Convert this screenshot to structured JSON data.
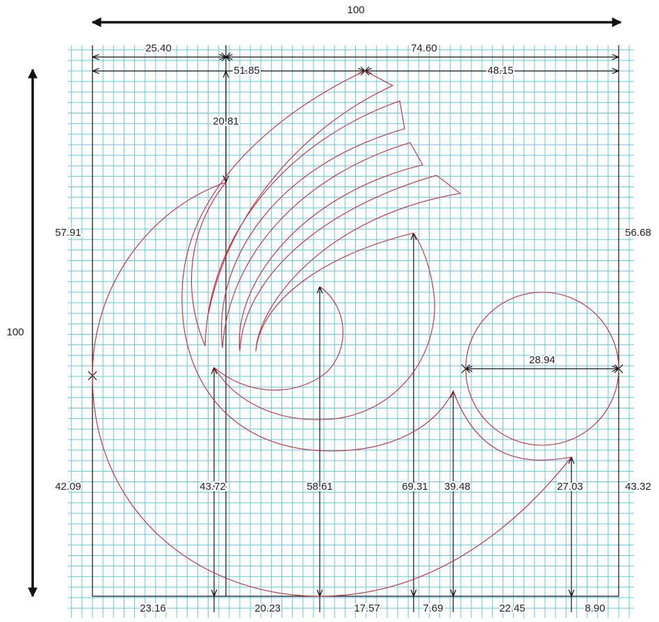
{
  "dimensions": {
    "overall_width": "100",
    "overall_height": "100",
    "top": [
      "25.40",
      "74.60"
    ],
    "second": [
      "51.85",
      "48.15"
    ],
    "vertical_top": "20.81",
    "left": [
      "57.91",
      "42.09"
    ],
    "right": [
      "56.68",
      "43.32"
    ],
    "circle": "28.94",
    "heights": [
      "43.72",
      "58.61",
      "69.31",
      "39.48",
      "27.03"
    ],
    "bottom": [
      "23.16",
      "20.23",
      "17.57",
      "7.69",
      "22.45",
      "8.90"
    ]
  }
}
